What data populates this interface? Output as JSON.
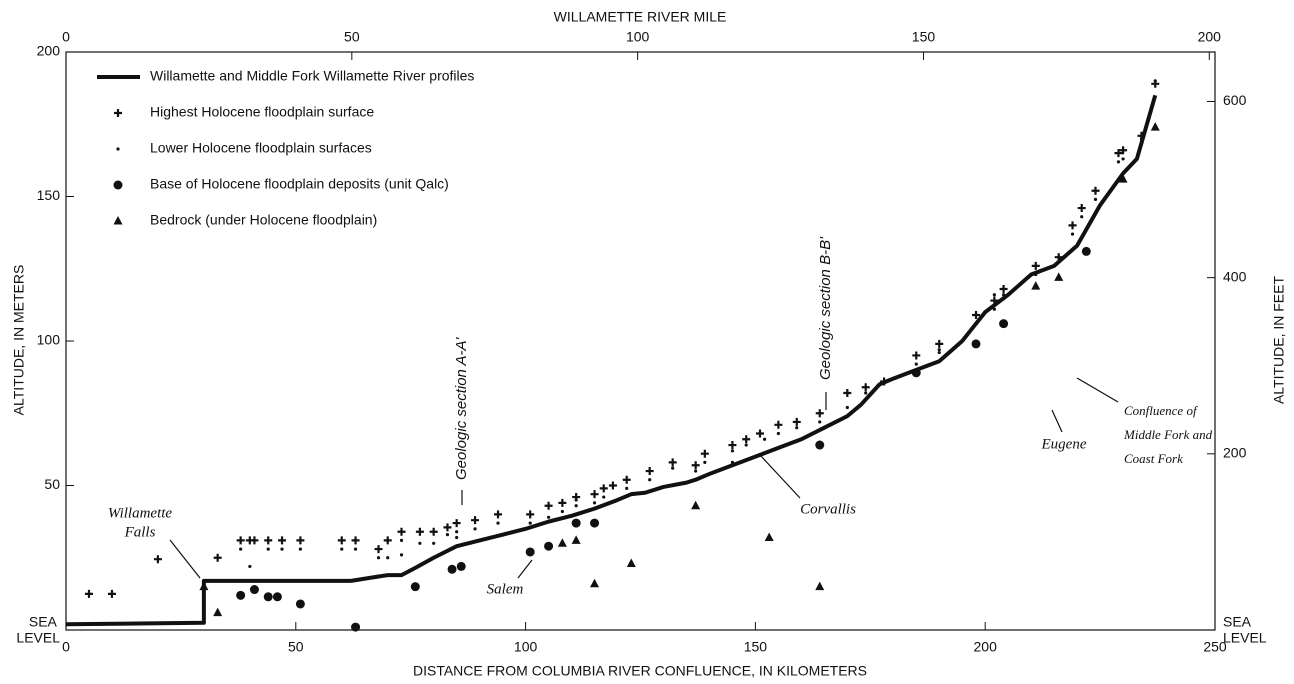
{
  "chart_data": {
    "type": "scatter",
    "xlabel": "DISTANCE FROM COLUMBIA RIVER CONFLUENCE, IN KILOMETERS",
    "ylabel": "ALTITUDE, IN METERS",
    "y2label": "ALTITUDE, IN FEET",
    "x2label": "WILLAMETTE RIVER MILE",
    "xlim": [
      0,
      250
    ],
    "xticks": [
      0,
      50,
      100,
      150,
      200,
      250
    ],
    "ylim": [
      0,
      200
    ],
    "yticks": [
      {
        "value": 0,
        "label": "SEA LEVEL"
      },
      50,
      100,
      150,
      200
    ],
    "y2lim": [
      0,
      656.17
    ],
    "y2ticks": [
      {
        "value": 0,
        "label": "SEA LEVEL"
      },
      200,
      400,
      600
    ],
    "x2lim": [
      0,
      201
    ],
    "x2ticks": [
      0,
      50,
      100,
      150,
      200
    ],
    "legend": "upper left",
    "grid": false,
    "series": [
      {
        "name": "Willamette and Middle Fork Willamette River profiles",
        "marker": "line",
        "color": "#111111",
        "x": [
          0,
          30,
          30,
          62,
          68,
          70,
          73,
          76,
          80,
          85,
          90,
          95,
          100,
          105,
          110,
          115,
          120,
          123,
          126,
          130,
          135,
          137,
          140,
          145,
          150,
          155,
          160,
          165,
          170,
          173,
          177,
          180,
          185,
          190,
          195,
          197,
          200,
          205,
          210,
          215,
          220,
          225,
          230,
          233,
          237
        ],
        "values": [
          2,
          2.5,
          17,
          17,
          18.5,
          19,
          19,
          21.5,
          25,
          29,
          31,
          33,
          35,
          37.5,
          39.5,
          42,
          45,
          47,
          47.5,
          49.5,
          51,
          52,
          54,
          57,
          60,
          63,
          66,
          70,
          74,
          78,
          85,
          87,
          90,
          93,
          100,
          104,
          110,
          116,
          123,
          126,
          133,
          147,
          158,
          163,
          185
        ]
      },
      {
        "name": "Highest Holocene floodplain surface",
        "marker": "plus",
        "color": "#111111",
        "x": [
          5,
          10,
          20,
          33,
          38,
          40,
          41,
          44,
          47,
          51,
          60,
          63,
          68,
          70,
          73,
          77,
          80,
          83,
          85,
          89,
          94,
          101,
          105,
          108,
          111,
          115,
          117,
          119,
          122,
          127,
          132,
          137,
          139,
          145,
          148,
          151,
          155,
          159,
          164,
          170,
          174,
          178,
          185,
          190,
          198,
          202,
          204,
          211,
          216,
          219,
          221,
          224,
          229,
          230,
          234,
          237
        ],
        "values": [
          12.5,
          12.5,
          24.5,
          25,
          31,
          31,
          31,
          31,
          31,
          31,
          31,
          31,
          28,
          31,
          34,
          34,
          34,
          35.5,
          37,
          38,
          40,
          40,
          43,
          44,
          46,
          47,
          49,
          50,
          52,
          55,
          58,
          57,
          61,
          64,
          66,
          68,
          71,
          72,
          75,
          82,
          84,
          86,
          95,
          99,
          109,
          114,
          118,
          126,
          129,
          140,
          146,
          152,
          165,
          166,
          171,
          189
        ]
      },
      {
        "name": "Lower Holocene floodplain surfaces",
        "marker": "dot",
        "color": "#111111",
        "x": [
          38,
          40,
          44,
          47,
          51,
          60,
          63,
          68,
          70,
          73,
          73,
          77,
          80,
          83,
          85,
          85,
          89,
          94,
          101,
          105,
          108,
          111,
          111,
          115,
          117,
          122,
          127,
          132,
          137,
          139,
          145,
          145,
          148,
          152,
          155,
          159,
          164,
          170,
          174,
          185,
          190,
          190,
          198,
          202,
          202,
          204,
          211,
          219,
          221,
          224,
          229,
          230,
          234,
          237
        ],
        "values": [
          28,
          22,
          28,
          28,
          28,
          28,
          28,
          25,
          25,
          26,
          31,
          30,
          30,
          33,
          32,
          34,
          35,
          37,
          37,
          39,
          41,
          43,
          45,
          44,
          46,
          49,
          52,
          56,
          55,
          58,
          58,
          62,
          64,
          66,
          68,
          70,
          72,
          77,
          82,
          92,
          96,
          97,
          106,
          111,
          116,
          116,
          123,
          137,
          143,
          149,
          162,
          163,
          170,
          190
        ]
      },
      {
        "name": "Base of Holocene floodplain deposits (unit Qalc)",
        "marker": "circle",
        "color": "#111111",
        "x": [
          38,
          41,
          44,
          46,
          51,
          63,
          76,
          84,
          86,
          101,
          105,
          111,
          115,
          164,
          185,
          198,
          204,
          222
        ],
        "values": [
          12,
          14,
          11.5,
          11.5,
          9,
          1,
          15,
          21,
          22,
          27,
          29,
          37,
          37,
          64,
          89,
          99,
          106,
          131
        ]
      },
      {
        "name": "Bedrock (under Holocene floodplain)",
        "marker": "triangle",
        "color": "#111111",
        "x": [
          30,
          33,
          108,
          111,
          115,
          123,
          137,
          153,
          164,
          211,
          216,
          230,
          237
        ],
        "values": [
          15,
          6,
          30,
          31,
          16,
          23,
          43,
          32,
          15,
          119,
          122,
          156,
          174
        ]
      }
    ],
    "annotations": [
      {
        "text": [
          "Willamette",
          "Falls"
        ]
      },
      {
        "text": [
          "Salem"
        ]
      },
      {
        "text": [
          "Corvallis"
        ]
      },
      {
        "text": [
          "Eugene"
        ]
      },
      {
        "text": [
          "Confluence of",
          "Middle Fork and",
          "Coast Fork"
        ]
      },
      {
        "text": [
          "Geologic section A-A'"
        ]
      },
      {
        "text": [
          "Geologic section B-B'"
        ]
      }
    ]
  }
}
